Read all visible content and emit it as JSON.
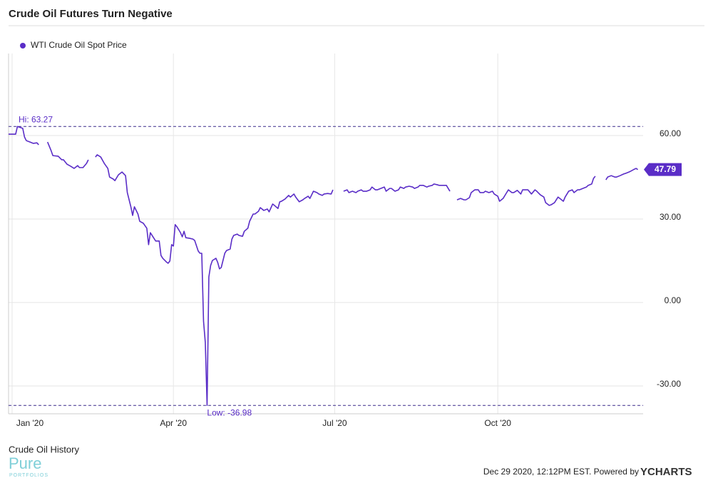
{
  "chart_data": {
    "type": "line",
    "title": "Crude Oil Futures Turn Negative",
    "x": [
      -2,
      2,
      3,
      6,
      7,
      8,
      10,
      12,
      14,
      15,
      17,
      20,
      22,
      23,
      26,
      28,
      29,
      31,
      33,
      35,
      37,
      38,
      40,
      42,
      43,
      45,
      47,
      48,
      50,
      52,
      54,
      55,
      57,
      58,
      60,
      62,
      64,
      65,
      67,
      68,
      69,
      71,
      72,
      74,
      76,
      77,
      78,
      79,
      80,
      81,
      83,
      84,
      85,
      87,
      88,
      89,
      90,
      91,
      92,
      93,
      95,
      96,
      97,
      98,
      100,
      102,
      103,
      105,
      106,
      107,
      108,
      109,
      110,
      111,
      112,
      113,
      115,
      116,
      117,
      118,
      120,
      121,
      123,
      124,
      125,
      127,
      128,
      130,
      131,
      133,
      134,
      136,
      137,
      139,
      140,
      142,
      144,
      145,
      147,
      148,
      150,
      151,
      152,
      154,
      156,
      157,
      159,
      160,
      162,
      164,
      165,
      167,
      168,
      170,
      172,
      173,
      175,
      176,
      178,
      180,
      181,
      184,
      187,
      189,
      190,
      192,
      194,
      195,
      197,
      198,
      200,
      202,
      203,
      205,
      206,
      208,
      210,
      211,
      213,
      214,
      216,
      218,
      219,
      221,
      222,
      224,
      226,
      227,
      229,
      230,
      232,
      234,
      235,
      237,
      238,
      240,
      241,
      243,
      245,
      247,
      250,
      251,
      253,
      255,
      256,
      258,
      259,
      261,
      263,
      264,
      266,
      267,
      269,
      271,
      272,
      274,
      275,
      277,
      279,
      280,
      282,
      283,
      285,
      287,
      288,
      290,
      291,
      293,
      295,
      296,
      298,
      300,
      301,
      303,
      304,
      306,
      308,
      309,
      311,
      312,
      314,
      316,
      317,
      319,
      320,
      322,
      324,
      325,
      327,
      328,
      329,
      333,
      335,
      336,
      338,
      340,
      341,
      343,
      345,
      346,
      348,
      349,
      351,
      352,
      353
    ],
    "series": [
      {
        "name": "WTI Crude Oil Spot Price",
        "color": "#5a2dc7",
        "values": [
          60.5,
          60.5,
          63.27,
          62.6,
          59.5,
          58.2,
          57.7,
          57.2,
          57.4,
          56.7,
          null,
          57.7,
          54.6,
          52.8,
          52.6,
          51.3,
          51.3,
          49.7,
          49.0,
          48.2,
          49.2,
          48.5,
          48.5,
          50.0,
          51.3,
          null,
          52.3,
          53.1,
          52.3,
          50.0,
          48.2,
          45.1,
          44.4,
          43.8,
          45.9,
          46.9,
          45.6,
          39.5,
          34.4,
          31.3,
          34.4,
          31.8,
          29.2,
          28.5,
          26.7,
          20.8,
          25.1,
          24.1,
          23.1,
          22.1,
          22.1,
          16.9,
          15.9,
          14.6,
          14.1,
          14.9,
          20.8,
          20.3,
          28.0,
          27.2,
          25.1,
          23.6,
          25.6,
          23.3,
          23.1,
          22.8,
          22.3,
          18.5,
          17.7,
          17.7,
          -6.7,
          -14.4,
          -36.98,
          9.2,
          13.3,
          15.1,
          15.9,
          14.4,
          12.1,
          12.6,
          17.7,
          18.7,
          19.2,
          22.8,
          24.1,
          24.6,
          24.1,
          23.8,
          25.6,
          26.7,
          29.2,
          31.8,
          31.8,
          32.8,
          34.1,
          33.1,
          33.6,
          32.6,
          35.4,
          34.9,
          33.8,
          36.2,
          36.4,
          37.2,
          38.5,
          37.9,
          39.0,
          37.9,
          36.2,
          36.9,
          37.4,
          38.2,
          37.4,
          40.0,
          39.5,
          39.0,
          38.5,
          39.0,
          39.2,
          39.0,
          40.5,
          null,
          40.0,
          40.5,
          39.5,
          40.0,
          39.5,
          40.0,
          40.5,
          40.0,
          40.0,
          40.5,
          41.5,
          40.5,
          40.5,
          41.0,
          41.5,
          40.0,
          41.0,
          41.0,
          40.0,
          40.5,
          41.5,
          41.0,
          41.5,
          41.8,
          41.5,
          41.0,
          41.5,
          42.1,
          42.1,
          41.5,
          41.8,
          42.1,
          42.6,
          42.3,
          42.1,
          42.1,
          42.1,
          40.0,
          null,
          36.9,
          37.4,
          36.9,
          36.9,
          37.7,
          39.5,
          40.5,
          40.5,
          39.5,
          39.5,
          40.0,
          39.5,
          40.0,
          39.0,
          38.2,
          36.4,
          37.4,
          39.5,
          40.5,
          39.5,
          39.5,
          40.3,
          39.0,
          40.5,
          40.5,
          40.5,
          39.0,
          40.5,
          40.0,
          38.7,
          37.9,
          35.9,
          34.9,
          35.1,
          35.9,
          37.9,
          37.4,
          36.4,
          37.9,
          40.0,
          40.5,
          39.5,
          40.5,
          40.5,
          41.0,
          41.5,
          42.1,
          42.6,
          44.6,
          45.4,
          null,
          44.1,
          45.1,
          45.6,
          45.1,
          45.1,
          45.6,
          46.2,
          46.4,
          46.9,
          47.2,
          47.9,
          48.2,
          47.79
        ]
      }
    ],
    "xlim": [
      -2,
      356
    ],
    "xticks": [
      {
        "value": 0,
        "label": "Jan '20"
      },
      {
        "value": 91,
        "label": "Apr '20"
      },
      {
        "value": 182,
        "label": "Jul '20"
      },
      {
        "value": 274,
        "label": "Oct '20"
      }
    ],
    "ylim": [
      -40,
      89.5
    ],
    "yticks": [
      {
        "value": -30,
        "label": "-30.00"
      },
      {
        "value": 0,
        "label": "0.00"
      },
      {
        "value": 30,
        "label": "30.00"
      },
      {
        "value": 60,
        "label": "60.00"
      }
    ],
    "grid": true,
    "legend": "top-left",
    "annotations": [
      {
        "value": 63.27,
        "label": "Hi: 63.27"
      },
      {
        "value": -36.98,
        "label": "Low: -36.98"
      }
    ],
    "last_value": 47.79
  },
  "footer": {
    "caption": "Crude Oil History",
    "logo": "Pure",
    "logo_sub": "PORTFOLIOS",
    "timestamp": "Dec 29 2020, 12:12PM EST. Powered by",
    "brand": "YCHARTS"
  }
}
